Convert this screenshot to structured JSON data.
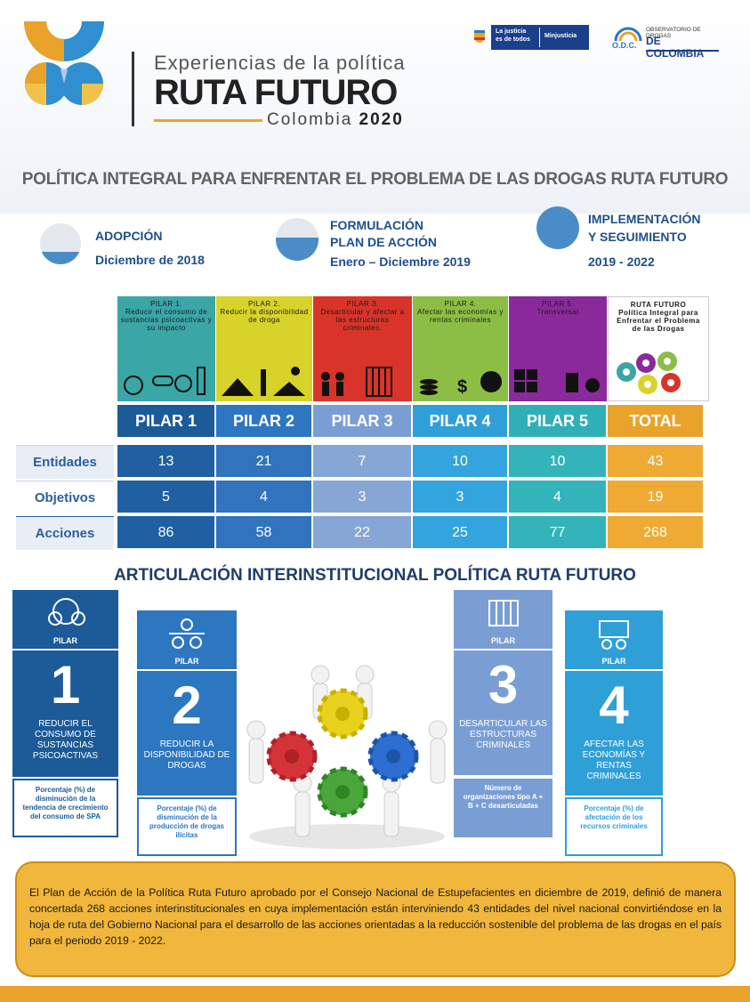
{
  "header": {
    "subtitle": "Experiencias de la política",
    "title": "RUTA FUTURO",
    "country": "Colombia",
    "year": "2020",
    "gov_logo_line1": "La justicia",
    "gov_logo_line2": "es de todos",
    "gov_logo_ministry": "Minjusticia",
    "odc_line1": "OBSERVATORIO DE DROGAS",
    "odc_abbr": "O.D.C.",
    "odc_line2": "DE COLOMBIA"
  },
  "main_title": "POLÍTICA INTEGRAL PARA ENFRENTAR EL PROBLEMA DE LAS DROGAS RUTA FUTURO",
  "phases": [
    {
      "label": "ADOPCIÓN",
      "date": "Diciembre de 2018",
      "fill": 0.3
    },
    {
      "label_line1": "FORMULACIÓN",
      "label_line2": "PLAN DE ACCIÓN",
      "date": "Enero – Diciembre 2019",
      "fill": 0.55
    },
    {
      "label_line1": "IMPLEMENTACIÓN",
      "label_line2": "Y SEGUIMIENTO",
      "date": "2019 - 2022",
      "fill": 1.0
    }
  ],
  "pillar_cards": [
    {
      "title": "PILAR 1.",
      "text": "Reducir el consumo de sustancias psicoactivas y su impacto",
      "color": "#3aa6a6"
    },
    {
      "title": "PILAR 2.",
      "text": "Reducir la disponibilidad de droga",
      "color": "#d7d32a"
    },
    {
      "title": "PILAR 3.",
      "text": "Desarticular y afectar a las estructuras criminales.",
      "color": "#d8342a"
    },
    {
      "title": "PILAR 4.",
      "text": "Afectar las economías y rentas criminales",
      "color": "#8cbe45"
    },
    {
      "title": "PILAR 5.",
      "text": "Transversal",
      "color": "#8a2a9a"
    },
    {
      "title": "RUTA FUTURO",
      "text": "Política Integral para Enfrentar el Problema de las Drogas",
      "color": "#ffffff"
    }
  ],
  "table": {
    "headers": [
      "PILAR 1",
      "PILAR 2",
      "PILAR 3",
      "PILAR 4",
      "PILAR 5",
      "TOTAL"
    ],
    "header_colors": [
      "#1c5a98",
      "#2d76c0",
      "#7a9ed3",
      "#2f9fd8",
      "#2fb0b7",
      "#e9a32b"
    ],
    "cell_colors": [
      "#1f5fa2",
      "#3173bc",
      "#86a6d6",
      "#33a4dd",
      "#33b3ba",
      "#eeaa33"
    ],
    "rows": [
      {
        "label": "Entidades",
        "values": [
          "13",
          "21",
          "7",
          "10",
          "10",
          "43"
        ]
      },
      {
        "label": "Objetivos",
        "values": [
          "5",
          "4",
          "3",
          "3",
          "4",
          "19"
        ]
      },
      {
        "label": "Acciones",
        "values": [
          "86",
          "58",
          "22",
          "25",
          "77",
          "268"
        ]
      }
    ]
  },
  "section2_title": "ARTICULACIÓN INTERINSTITUCIONAL POLÍTICA RUTA FUTURO",
  "articulation": [
    {
      "head": "PILAR",
      "number": "1",
      "desc": "REDUCIR EL CONSUMO DE SUSTANCIAS PSICOACTIVAS",
      "indicator": "Porcentaje (%) de disminución de la tendencia de crecimiento del consumo de SPA",
      "color": "#1c5a98"
    },
    {
      "head": "PILAR",
      "number": "2",
      "desc": "REDUCIR LA DISPONIBILIDAD DE DROGAS",
      "indicator": "Porcentaje (%) de disminución de la producción de drogas ilícitas",
      "color": "#2d76c0"
    },
    {
      "head": "PILAR",
      "number": "3",
      "desc": "DESARTICULAR LAS ESTRUCTURAS CRIMINALES",
      "indicator": "Número de organizaciones tipo A + B + C desarticuladas",
      "color": "#7a9ed3"
    },
    {
      "head": "PILAR",
      "number": "4",
      "desc": "AFECTAR LAS ECONOMÍAS Y RENTAS CRIMINALES",
      "indicator": "Porcentaje (%) de afectación de los recursos criminales",
      "color": "#2f9fd8"
    }
  ],
  "summary": "El Plan de Acción de la Política Ruta Futuro aprobado por el Consejo Nacional de Estupefacientes en diciembre de 2019, definió de manera concertada 268 acciones interinstitucionales en cuya implementación están interviniendo 43 entidades del nivel nacional convirtiéndose en la hoja de ruta del Gobierno Nacional para el desarrollo de las acciones orientadas a la reducción sostenible del problema de las drogas en el país para el periodo 2019 - 2022."
}
